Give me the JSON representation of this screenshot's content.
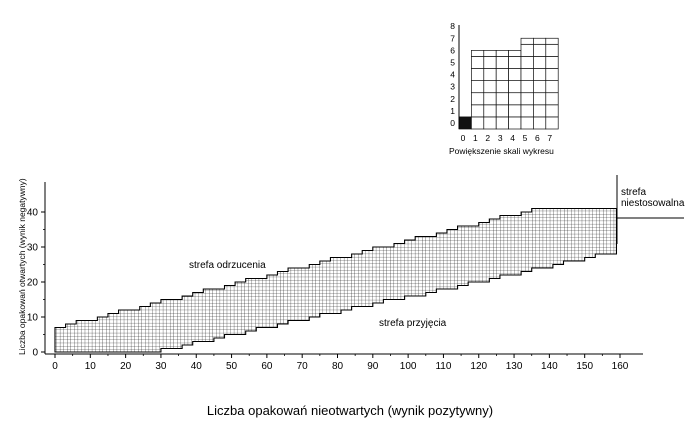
{
  "chart_data": [
    {
      "type": "area",
      "description_role": "main sampling chart",
      "xlabel": "Liczba  opakowań nieotwartych (wynik pozytywny)",
      "ylabel": "Liczba opakowań otwartych (wynik negatywny)",
      "xlim": [
        0,
        160
      ],
      "ylim": [
        0,
        42
      ],
      "x_ticks": [
        0,
        10,
        20,
        30,
        40,
        50,
        60,
        70,
        80,
        90,
        100,
        110,
        120,
        130,
        140,
        150,
        160
      ],
      "y_ticks": [
        0,
        10,
        20,
        30,
        40
      ],
      "grid": false,
      "band": {
        "x_start": 0,
        "x_end": 159,
        "lower_boundary": {
          "x": [
            0,
            27,
            159
          ],
          "y": [
            0,
            0,
            29
          ]
        },
        "upper_boundary": {
          "x": [
            0,
            136,
            159
          ],
          "y": [
            7,
            41,
            41
          ]
        }
      },
      "zones": [
        {
          "name": "reject",
          "label": "strefa odrzucenia"
        },
        {
          "name": "accept",
          "label": "strefa przyjęcia"
        },
        {
          "name": "indeterminate",
          "label_lines": [
            "strefa",
            "niestosowalna"
          ]
        }
      ]
    },
    {
      "type": "heatmap",
      "description_role": "inset magnified scale",
      "xlabel": "Powiększenie skali wykresu",
      "x_ticks": [
        0,
        1,
        2,
        3,
        4,
        5,
        6,
        7
      ],
      "y_ticks": [
        0,
        1,
        2,
        3,
        4,
        5,
        6,
        7,
        8
      ],
      "filled_cells": [
        [
          0,
          0
        ]
      ],
      "column_tops": [
        1,
        6.5,
        6.5,
        6.5,
        6.5,
        7.5,
        7.5,
        7.5
      ]
    }
  ]
}
